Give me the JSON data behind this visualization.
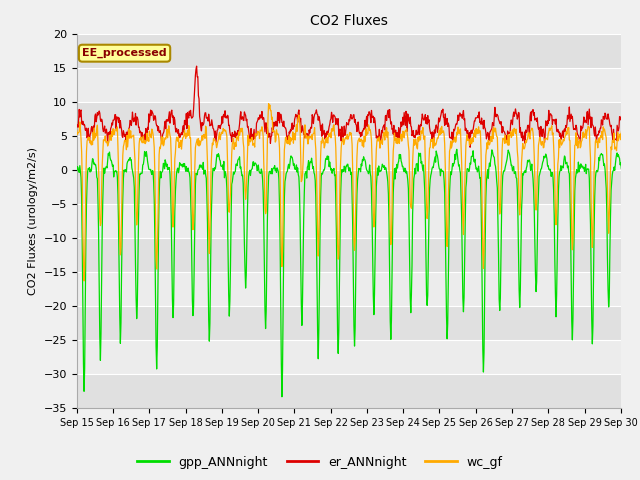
{
  "title": "CO2 Fluxes",
  "ylabel": "CO2 Fluxes (urology/m2/s)",
  "ylim": [
    -35,
    20
  ],
  "background_color": "#f0f0f0",
  "plot_bg_color": "#e8e8e8",
  "grid_color": "#d8d8d8",
  "stripe_color": "#d8d8d8",
  "line_colors": {
    "gpp_ANNnight": "#00dd00",
    "er_ANNnight": "#dd0000",
    "wc_gf": "#ffaa00"
  },
  "legend_labels": [
    "gpp_ANNnight",
    "er_ANNnight",
    "wc_gf"
  ],
  "annotation_text": "EE_processed",
  "annotation_color": "#880000",
  "annotation_bg": "#ffff99",
  "annotation_border": "#aa8800",
  "yticks": [
    -35,
    -30,
    -25,
    -20,
    -15,
    -10,
    -5,
    0,
    5,
    10,
    15,
    20
  ],
  "x_days": [
    15,
    16,
    17,
    18,
    19,
    20,
    21,
    22,
    23,
    24,
    25,
    26,
    27,
    28,
    29,
    30
  ],
  "n_points": 960
}
